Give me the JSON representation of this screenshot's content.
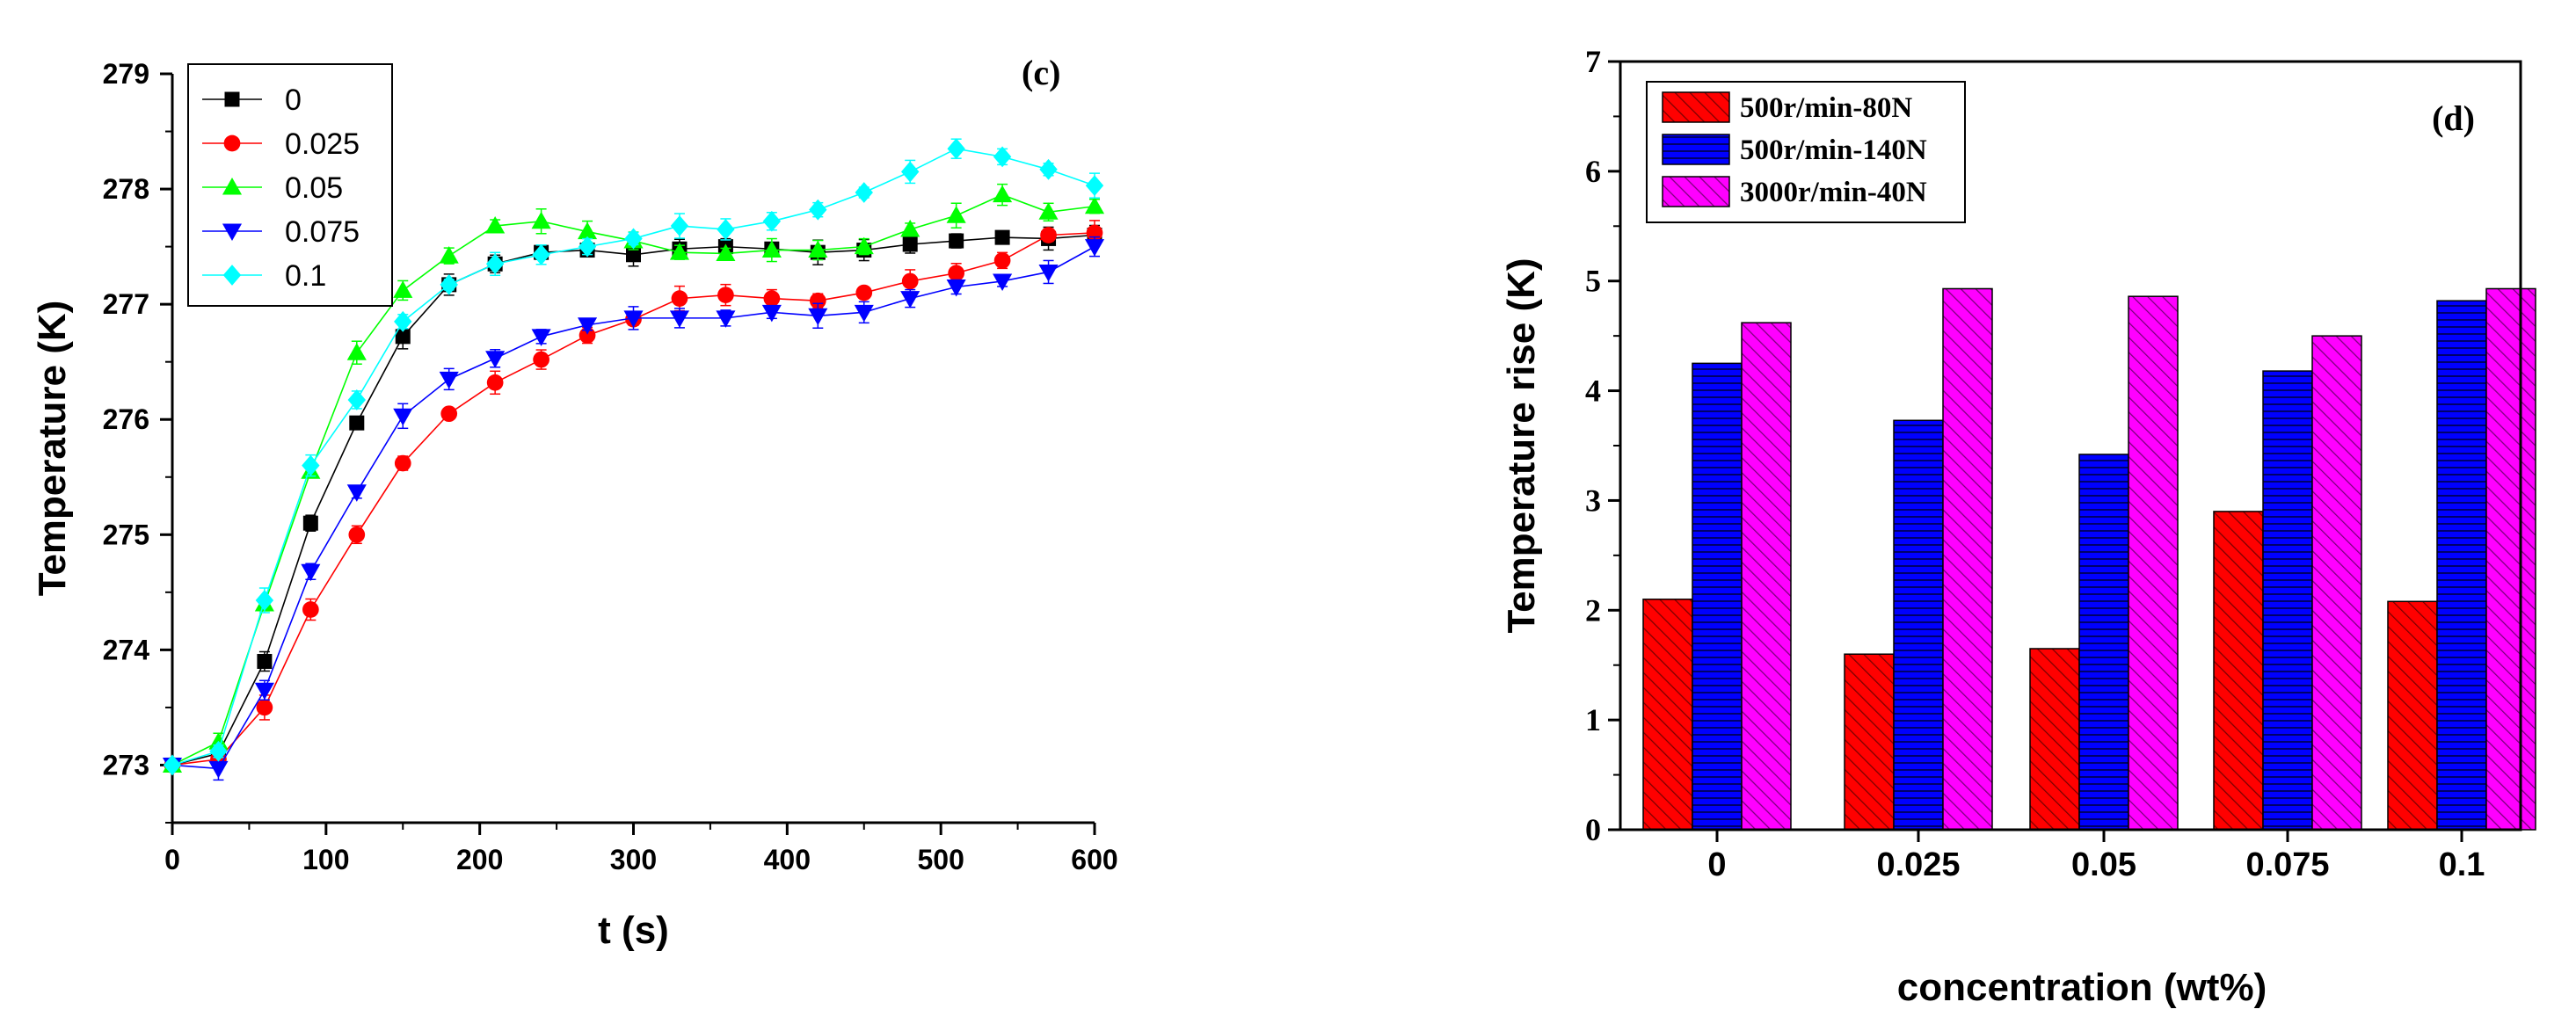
{
  "chart_data": [
    {
      "type": "line",
      "panel_label": "(c)",
      "xlabel": "t (s)",
      "ylabel": "Temperature (K)",
      "xlim": [
        0,
        600
      ],
      "ylim": [
        272.5,
        279
      ],
      "xticks": [
        "0",
        "100",
        "200",
        "300",
        "400",
        "500",
        "600"
      ],
      "yticks": [
        "273",
        "274",
        "275",
        "276",
        "277",
        "278",
        "279"
      ],
      "grid": false,
      "legend_position": "top-left",
      "x": [
        0,
        30,
        60,
        90,
        120,
        150,
        180,
        210,
        240,
        270,
        300,
        330,
        360,
        390,
        420,
        450,
        480,
        510,
        540,
        570,
        600
      ],
      "series": [
        {
          "name": "0",
          "color": "#000000",
          "marker": "square",
          "values": [
            273.0,
            273.1,
            273.9,
            275.1,
            275.97,
            276.72,
            277.17,
            277.35,
            277.45,
            277.47,
            277.43,
            277.48,
            277.5,
            277.48,
            277.45,
            277.47,
            277.52,
            277.55,
            277.58,
            277.57,
            277.6
          ]
        },
        {
          "name": "0.025",
          "color": "#ff0000",
          "marker": "circle",
          "values": [
            273.0,
            273.05,
            273.5,
            274.35,
            275.0,
            275.62,
            276.05,
            276.32,
            276.52,
            276.73,
            276.87,
            277.05,
            277.08,
            277.05,
            277.03,
            277.1,
            277.2,
            277.27,
            277.38,
            277.6,
            277.62
          ]
        },
        {
          "name": "0.05",
          "color": "#00ff00",
          "marker": "triangle-up",
          "values": [
            273.0,
            273.2,
            274.4,
            275.55,
            276.58,
            277.12,
            277.42,
            277.68,
            277.72,
            277.63,
            277.55,
            277.45,
            277.44,
            277.47,
            277.47,
            277.5,
            277.65,
            277.77,
            277.95,
            277.8,
            277.85
          ]
        },
        {
          "name": "0.075",
          "color": "#0000ff",
          "marker": "triangle-down",
          "values": [
            273.0,
            272.97,
            273.65,
            274.68,
            275.37,
            276.03,
            276.35,
            276.53,
            276.72,
            276.82,
            276.88,
            276.88,
            276.88,
            276.93,
            276.9,
            276.93,
            277.05,
            277.15,
            277.2,
            277.28,
            277.5
          ]
        },
        {
          "name": "0.1",
          "color": "#00ffff",
          "marker": "diamond",
          "values": [
            273.0,
            273.12,
            274.43,
            275.6,
            276.17,
            276.85,
            277.17,
            277.35,
            277.43,
            277.5,
            277.57,
            277.68,
            277.65,
            277.72,
            277.82,
            277.97,
            278.15,
            278.35,
            278.28,
            278.17,
            278.03
          ]
        }
      ]
    },
    {
      "type": "bar",
      "panel_label": "(d)",
      "xlabel": "concentration (wt%)",
      "ylabel": "Temperature rise (K)",
      "ylim": [
        0,
        7
      ],
      "yticks": [
        "0",
        "1",
        "2",
        "3",
        "4",
        "5",
        "6",
        "7"
      ],
      "grid": false,
      "legend_position": "top-left",
      "categories": [
        "0",
        "0.025",
        "0.05",
        "0.075",
        "0.1"
      ],
      "series": [
        {
          "name": "500r/min-80N",
          "color": "#ff0000",
          "pattern": "diagonal",
          "values": [
            2.1,
            1.6,
            1.65,
            2.9,
            2.08
          ]
        },
        {
          "name": "500r/min-140N",
          "color": "#0000ff",
          "pattern": "horizontal",
          "values": [
            4.25,
            3.73,
            3.42,
            4.18,
            4.82
          ]
        },
        {
          "name": "3000r/min-40N",
          "color": "#ff00ff",
          "pattern": "diagonal",
          "values": [
            4.62,
            4.93,
            4.86,
            4.5,
            4.93
          ]
        }
      ]
    }
  ]
}
